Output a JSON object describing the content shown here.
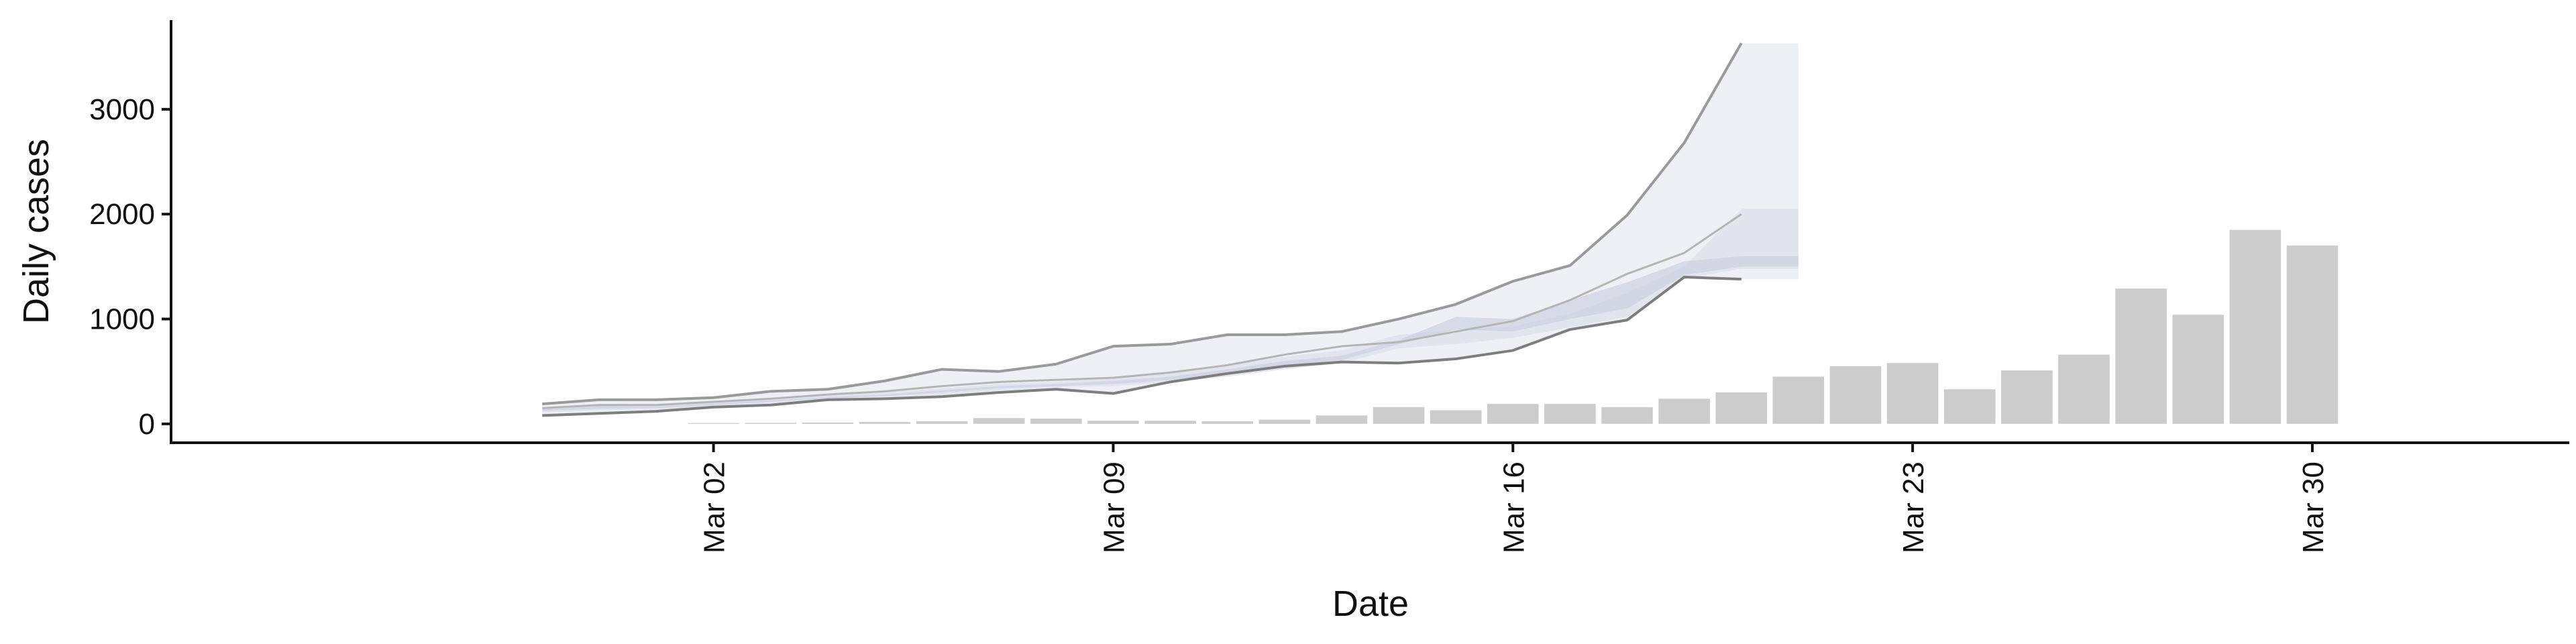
{
  "chart_data": {
    "type": "bar",
    "title": "",
    "xlabel": "Date",
    "ylabel": "Daily cases",
    "x_ticks": [
      "Mar 02",
      "Mar 09",
      "Mar 16",
      "Mar 23",
      "Mar 30"
    ],
    "y_ticks": [
      "0",
      "1000",
      "2000",
      "3000"
    ],
    "ylim": [
      -180,
      3850
    ],
    "grid": false,
    "legend": "none",
    "colors": {
      "bars": "#cccccc",
      "band_outer": "#eef0f5",
      "band_mid": "#dfe2ec",
      "band_inner": "#cdd2e1",
      "line_upper": "#9a9a9a",
      "line_mid": "#b5b5b5",
      "line_lower": "#7e7e7e"
    },
    "x_range_days": [
      -8.5,
      33.5
    ],
    "series": [
      {
        "kind": "bars",
        "dates": [
          "Mar 02",
          "Mar 03",
          "Mar 04",
          "Mar 05",
          "Mar 06",
          "Mar 07",
          "Mar 08",
          "Mar 09",
          "Mar 10",
          "Mar 11",
          "Mar 12",
          "Mar 13",
          "Mar 14",
          "Mar 15",
          "Mar 16",
          "Mar 17",
          "Mar 18",
          "Mar 19",
          "Mar 20",
          "Mar 21",
          "Mar 22",
          "Mar 23",
          "Mar 24",
          "Mar 25",
          "Mar 26",
          "Mar 27",
          "Mar 28",
          "Mar 29",
          "Mar 30"
        ],
        "values": [
          8,
          10,
          12,
          18,
          25,
          55,
          50,
          30,
          30,
          25,
          40,
          80,
          160,
          130,
          190,
          190,
          160,
          240,
          300,
          450,
          550,
          580,
          330,
          510,
          660,
          1290,
          1040,
          1850,
          1700
        ]
      },
      {
        "kind": "band",
        "dates": [
          "Feb 28",
          "Feb 29",
          "Mar 01",
          "Mar 02",
          "Mar 03",
          "Mar 04",
          "Mar 05",
          "Mar 06",
          "Mar 07",
          "Mar 08",
          "Mar 09",
          "Mar 10",
          "Mar 11",
          "Mar 12",
          "Mar 13",
          "Mar 14",
          "Mar 15",
          "Mar 16",
          "Mar 17",
          "Mar 18",
          "Mar 19",
          "Mar 20",
          "Mar 21"
        ],
        "outer_upper": [
          190,
          230,
          230,
          250,
          310,
          330,
          410,
          520,
          500,
          570,
          740,
          760,
          850,
          850,
          880,
          1000,
          1140,
          1360,
          1510,
          1990,
          2680,
          3630,
          3630
        ],
        "outer_lower": [
          80,
          100,
          120,
          160,
          180,
          230,
          240,
          260,
          300,
          330,
          290,
          400,
          480,
          550,
          590,
          580,
          620,
          700,
          900,
          990,
          1400,
          1380,
          1380
        ],
        "mid_upper": [
          150,
          190,
          180,
          210,
          240,
          270,
          300,
          340,
          380,
          400,
          450,
          480,
          560,
          640,
          700,
          850,
          900,
          930,
          1050,
          1250,
          1500,
          2050,
          2050
        ],
        "mid_lower": [
          110,
          130,
          140,
          170,
          200,
          240,
          260,
          280,
          320,
          350,
          360,
          400,
          450,
          520,
          580,
          720,
          760,
          820,
          920,
          1020,
          1380,
          1480,
          1480
        ],
        "inner_upper": [
          140,
          170,
          165,
          195,
          225,
          255,
          280,
          320,
          360,
          380,
          410,
          450,
          520,
          600,
          650,
          800,
          1020,
          1000,
          1180,
          1350,
          1550,
          1600,
          1600
        ],
        "inner_lower": [
          125,
          145,
          150,
          180,
          210,
          245,
          265,
          300,
          340,
          360,
          380,
          420,
          480,
          560,
          610,
          760,
          900,
          880,
          1000,
          1100,
          1420,
          1500,
          1500
        ],
        "line_upper": [
          190,
          230,
          230,
          250,
          310,
          330,
          410,
          520,
          500,
          570,
          740,
          760,
          850,
          850,
          880,
          1000,
          1140,
          1360,
          1510,
          1990,
          2680,
          3630
        ],
        "line_mid": [
          150,
          180,
          180,
          210,
          240,
          280,
          310,
          360,
          400,
          420,
          440,
          490,
          560,
          660,
          740,
          780,
          880,
          980,
          1180,
          1430,
          1630,
          2000
        ],
        "line_lower": [
          80,
          100,
          120,
          160,
          180,
          230,
          240,
          260,
          300,
          330,
          290,
          400,
          480,
          550,
          590,
          580,
          620,
          700,
          900,
          990,
          1400,
          1380
        ]
      }
    ]
  }
}
